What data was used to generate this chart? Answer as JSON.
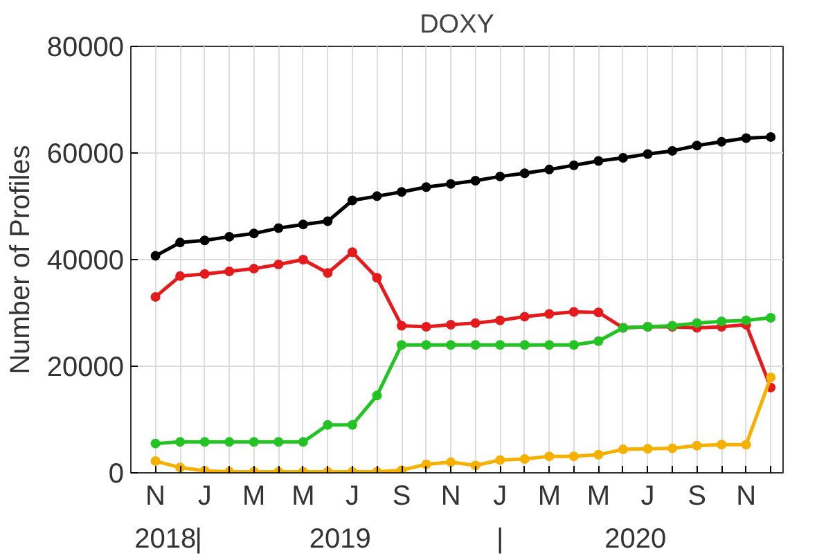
{
  "chart_data": {
    "type": "line",
    "title": "DOXY",
    "ylabel": "Number of Profiles",
    "categories": [
      "N",
      null,
      "J",
      null,
      "M",
      null,
      "M",
      null,
      "J",
      null,
      "S",
      null,
      "N",
      null,
      "J",
      null,
      "M",
      null,
      "M",
      null,
      "J",
      null,
      "S",
      null,
      "N",
      null
    ],
    "annotations": [
      "2018",
      "|",
      "2019",
      "|",
      "2020"
    ],
    "series": [
      {
        "color": "#000000",
        "values": [
          40700,
          43200,
          43600,
          44300,
          44900,
          45900,
          46600,
          47200,
          51100,
          51900,
          52700,
          53600,
          54200,
          54800,
          55600,
          56200,
          56900,
          57700,
          58500,
          59100,
          59800,
          60400,
          61400,
          62100,
          62800,
          63000
        ]
      },
      {
        "color": "#e41a1c",
        "values": [
          33000,
          36900,
          37300,
          37800,
          38300,
          39100,
          40000,
          37500,
          41400,
          36600,
          27600,
          27400,
          27800,
          28100,
          28600,
          29300,
          29800,
          30200,
          30100,
          27200,
          27400,
          27400,
          27200,
          27400,
          27800,
          16000
        ]
      },
      {
        "color": "#22c322",
        "values": [
          5500,
          5800,
          5800,
          5800,
          5800,
          5800,
          5800,
          9000,
          9000,
          14500,
          24000,
          24000,
          24000,
          24000,
          24000,
          24000,
          24000,
          24000,
          24700,
          27200,
          27400,
          27600,
          28100,
          28400,
          28600,
          29100
        ]
      },
      {
        "color": "#f5b000",
        "values": [
          2200,
          1000,
          400,
          200,
          200,
          200,
          200,
          200,
          200,
          200,
          500,
          1600,
          2000,
          1400,
          2400,
          2600,
          3100,
          3100,
          3400,
          4400,
          4500,
          4600,
          5100,
          5300,
          5300,
          17900
        ]
      }
    ],
    "ylim": [
      0,
      80000
    ],
    "yticks": [
      0,
      20000,
      40000,
      60000,
      80000
    ],
    "grid": true,
    "marker": "circle",
    "line_style": "solid"
  }
}
